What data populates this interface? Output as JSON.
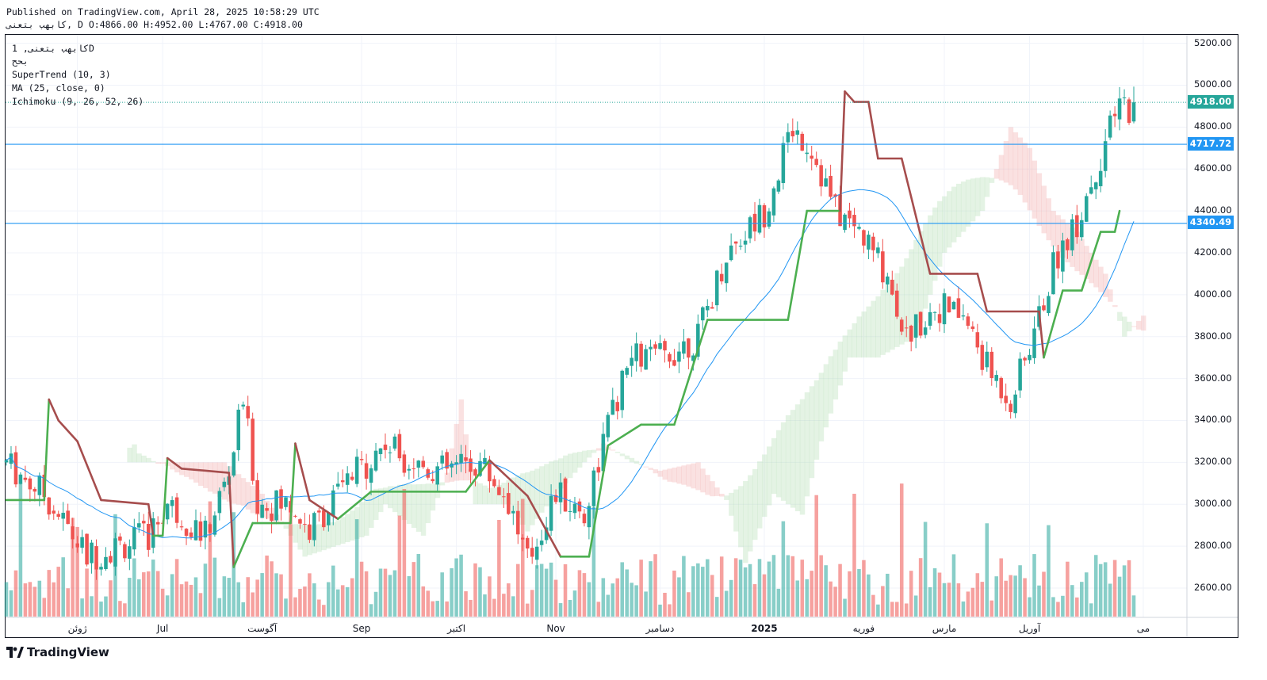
{
  "header": {
    "published": "Published on TradingView.com, April 28, 2025 10:58:29 UTC",
    "ohlc": "کابهب بتعنی, D O:4866.00 H:4952.00 L:4767.00 C:4918.00"
  },
  "legend": {
    "symbol": "کابهب بتعنی, 1D",
    "exchange": "بحح",
    "supertrend": "SuperTrend (10, 3)",
    "ma": "MA (25, close, 0)",
    "ichimoku": "Ichimoku (9, 26, 52, 26)"
  },
  "price_tags": {
    "last": "4918.00",
    "level_1": "4717.72",
    "level_2": "4340.49"
  },
  "colors": {
    "up": "#26a69a",
    "down": "#ef5350",
    "supertrend_up": "#4caf50",
    "supertrend_down": "#a64d4d",
    "ma": "#2196f3",
    "hline": "#2196f3",
    "cloud_bull": "#a5d6a7",
    "cloud_bear": "#ef9a9a"
  },
  "brand": "TradingView",
  "chart_data": {
    "type": "candlestick",
    "ylim": [
      2460,
      5240
    ],
    "y_ticks": [
      2600,
      2800,
      3000,
      3200,
      3400,
      3600,
      3800,
      4000,
      4200,
      4400,
      4600,
      4800,
      5000,
      5200
    ],
    "x_ticks": [
      "ژوئن",
      "Jul",
      "آگوست",
      "Sep",
      "اکتبر",
      "Nov",
      "دسامبر",
      "2025",
      "فوریه",
      "مارس",
      "آوریل",
      "می"
    ],
    "x_tick_index": [
      15,
      33,
      54,
      75,
      95,
      116,
      138,
      160,
      181,
      198,
      216,
      240
    ],
    "horizontal_levels": [
      4717.72,
      4340.49
    ],
    "last_price": 4918.0,
    "keypoints": [
      [
        0,
        3200
      ],
      [
        8,
        3050
      ],
      [
        17,
        2750
      ],
      [
        30,
        2850
      ],
      [
        34,
        3000
      ],
      [
        42,
        2850
      ],
      [
        47,
        3150
      ],
      [
        50,
        3500
      ],
      [
        53,
        3000
      ],
      [
        60,
        3000
      ],
      [
        64,
        2870
      ],
      [
        70,
        3050
      ],
      [
        76,
        3200
      ],
      [
        80,
        3290
      ],
      [
        86,
        3200
      ],
      [
        92,
        3160
      ],
      [
        100,
        3200
      ],
      [
        106,
        3020
      ],
      [
        110,
        2720
      ],
      [
        116,
        3050
      ],
      [
        122,
        2950
      ],
      [
        126,
        3300
      ],
      [
        132,
        3700
      ],
      [
        138,
        3700
      ],
      [
        146,
        3800
      ],
      [
        152,
        4200
      ],
      [
        160,
        4400
      ],
      [
        166,
        4800
      ],
      [
        170,
        4700
      ],
      [
        175,
        4400
      ],
      [
        180,
        4300
      ],
      [
        186,
        4100
      ],
      [
        190,
        3800
      ],
      [
        196,
        3950
      ],
      [
        202,
        3900
      ],
      [
        207,
        3650
      ],
      [
        212,
        3500
      ],
      [
        216,
        3750
      ],
      [
        222,
        4200
      ],
      [
        226,
        4350
      ],
      [
        230,
        4600
      ],
      [
        235,
        4900
      ]
    ],
    "supertrend_keypoints": [
      [
        0,
        3020
      ],
      [
        8,
        3020
      ],
      [
        9,
        3500
      ],
      [
        11,
        3400
      ],
      [
        15,
        3300
      ],
      [
        20,
        3020
      ],
      [
        30,
        3000
      ],
      [
        31,
        2850
      ],
      [
        33,
        2850
      ],
      [
        34,
        3220
      ],
      [
        37,
        3170
      ],
      [
        47,
        3150
      ],
      [
        48,
        2700
      ],
      [
        52,
        2910
      ],
      [
        60,
        2910
      ],
      [
        61,
        3290
      ],
      [
        64,
        3020
      ],
      [
        70,
        2930
      ],
      [
        77,
        3060
      ],
      [
        97,
        3060
      ],
      [
        100,
        3150
      ],
      [
        102,
        3210
      ],
      [
        110,
        3040
      ],
      [
        117,
        2750
      ],
      [
        123,
        2750
      ],
      [
        127,
        3280
      ],
      [
        134,
        3380
      ],
      [
        141,
        3380
      ],
      [
        148,
        3880
      ],
      [
        165,
        3880
      ],
      [
        169,
        4400
      ],
      [
        176,
        4400
      ],
      [
        177,
        4970
      ],
      [
        179,
        4920
      ],
      [
        182,
        4920
      ],
      [
        184,
        4650
      ],
      [
        189,
        4650
      ],
      [
        195,
        4100
      ],
      [
        205,
        4100
      ],
      [
        207,
        3920
      ],
      [
        218,
        3920
      ],
      [
        219,
        3700
      ],
      [
        223,
        4020
      ],
      [
        227,
        4020
      ],
      [
        231,
        4300
      ],
      [
        234,
        4300
      ],
      [
        235,
        4400
      ]
    ],
    "volume_max": 1000
  }
}
